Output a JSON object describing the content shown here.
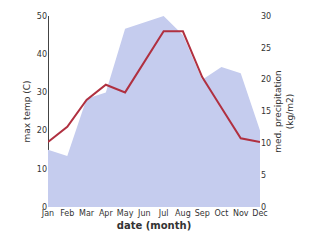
{
  "chart_data": {
    "type": "line",
    "categories": [
      "Jan",
      "Feb",
      "Mar",
      "Apr",
      "May",
      "Jun",
      "Jul",
      "Aug",
      "Sep",
      "Oct",
      "Nov",
      "Dec"
    ],
    "series": [
      {
        "type": "area",
        "color": "#c5ccee",
        "axis": "y2",
        "values": [
          9,
          8,
          17,
          18,
          28,
          29,
          30,
          27,
          20,
          22,
          21,
          12
        ]
      },
      {
        "type": "line",
        "color": "#b03040",
        "values": [
          17,
          21,
          28,
          32,
          30,
          38,
          46,
          46,
          34,
          26,
          18,
          17
        ]
      }
    ],
    "xlabel": "date (month)",
    "ylabel": "max temp (C)",
    "y2label": "med. precipitation\n(kg/m2)",
    "ylim": [
      0,
      50
    ],
    "yticks": [
      0,
      10,
      20,
      30,
      40,
      50
    ],
    "y2lim": [
      0,
      30
    ],
    "y2ticks": [
      0,
      5,
      10,
      15,
      20,
      25,
      30
    ],
    "grid": false
  }
}
